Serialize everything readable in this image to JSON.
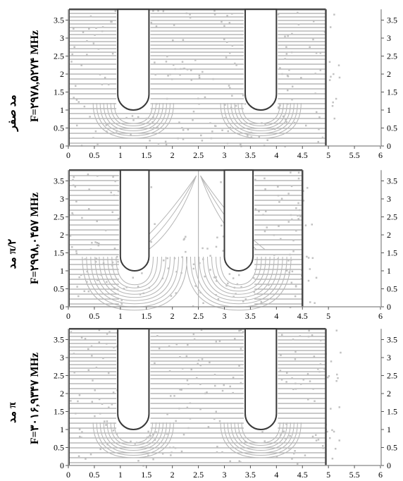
{
  "chart_data": [
    {
      "type": "field-plot",
      "mode_label": "مد صفر",
      "freq_label": "F=۲۹۷۸,۵۲۷۴ MHz",
      "x_ticks": [
        "0",
        "0.5",
        "1",
        "1.5",
        "2",
        "2.5",
        "3",
        "3.5",
        "4",
        "4.5",
        "5",
        "5.5",
        "6"
      ],
      "y_ticks": [
        "0",
        "0.5",
        "1",
        "1.5",
        "2",
        "2.5",
        "3",
        "3.5"
      ],
      "xlim": [
        0,
        6
      ],
      "ylim": [
        0,
        3.8
      ],
      "cavity_x_range": [
        0,
        4.95
      ],
      "nose_cones": [
        {
          "x_left": 0.95,
          "x_right": 1.55,
          "bottom_y": 1.0
        },
        {
          "x_left": 3.4,
          "x_right": 4.0,
          "bottom_y": 1.0
        }
      ],
      "center_line_x": null,
      "grid": false
    },
    {
      "type": "field-plot",
      "mode_label": "مد π/۲",
      "freq_label": "F=۲۹۹۸,۰۴۵۷ MHz",
      "x_ticks": [
        "0",
        "0.5",
        "1",
        "1.5",
        "2",
        "2.5",
        "3",
        "3.5",
        "4",
        "4.5",
        "5",
        "6"
      ],
      "y_ticks": [
        "0",
        "0.5",
        "1",
        "1.5",
        "2",
        "2.5",
        "3",
        "3.5"
      ],
      "xlim": [
        0,
        6
      ],
      "ylim": [
        0,
        3.8
      ],
      "cavity_x_range": [
        0,
        4.5
      ],
      "nose_cones": [
        {
          "x_left": 1.0,
          "x_right": 1.55,
          "bottom_y": 1.0
        },
        {
          "x_left": 3.0,
          "x_right": 3.55,
          "bottom_y": 1.0
        }
      ],
      "center_line_x": 2.5,
      "grid": false
    },
    {
      "type": "field-plot",
      "mode_label": "مد π",
      "freq_label": "F=۳۰۱۶,۹۳۴۷ MHz",
      "x_ticks": [
        "0",
        "0.5",
        "1",
        "1.5",
        "2",
        "2.5",
        "3",
        "3.5",
        "4",
        "4.5",
        "5",
        "5.5",
        "6"
      ],
      "y_ticks": [
        "0",
        "0.5",
        "1",
        "1.5",
        "2",
        "2.5",
        "3",
        "3.5"
      ],
      "xlim": [
        0,
        6
      ],
      "ylim": [
        0,
        3.8
      ],
      "cavity_x_range": [
        0,
        4.95
      ],
      "nose_cones": [
        {
          "x_left": 0.95,
          "x_right": 1.55,
          "bottom_y": 1.0
        },
        {
          "x_left": 3.4,
          "x_right": 4.0,
          "bottom_y": 1.0
        }
      ],
      "center_line_x": null,
      "grid": false
    }
  ]
}
